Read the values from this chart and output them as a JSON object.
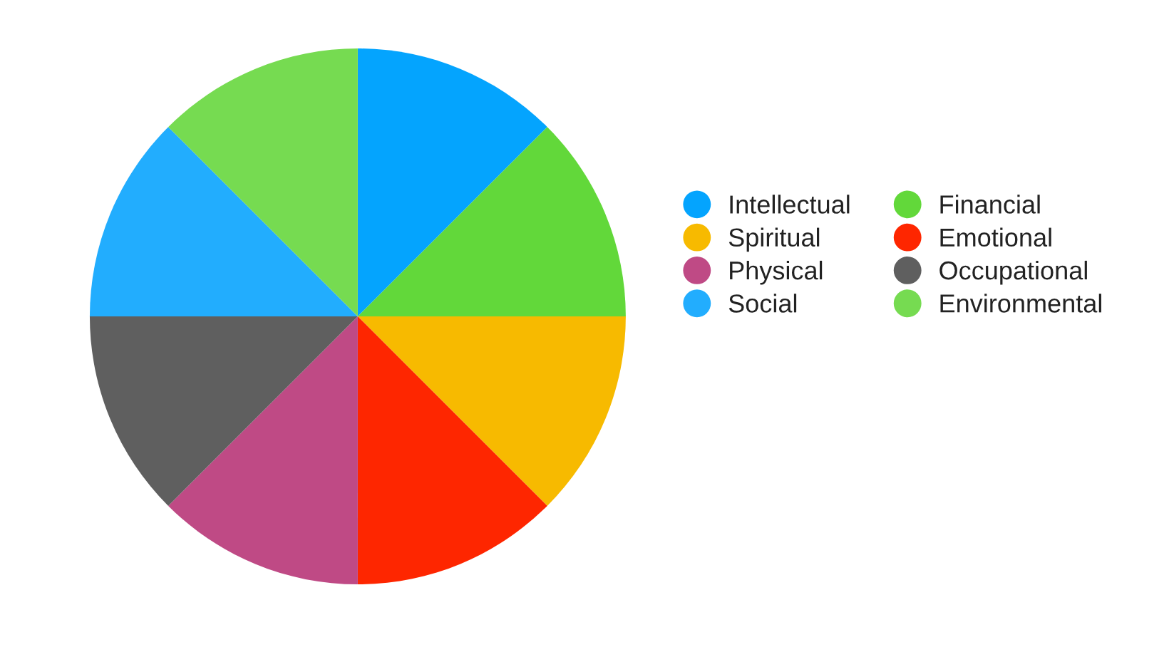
{
  "chart_data": {
    "type": "pie",
    "categories": [
      "Intellectual",
      "Financial",
      "Spiritual",
      "Emotional",
      "Physical",
      "Occupational",
      "Social",
      "Environmental"
    ],
    "values": [
      12.5,
      12.5,
      12.5,
      12.5,
      12.5,
      12.5,
      12.5,
      12.5
    ],
    "colors": [
      "#04a4fe",
      "#62d83a",
      "#f7ba00",
      "#fe2600",
      "#bf4a85",
      "#5f5f5f",
      "#22adfe",
      "#76db51"
    ],
    "legend": "right"
  }
}
